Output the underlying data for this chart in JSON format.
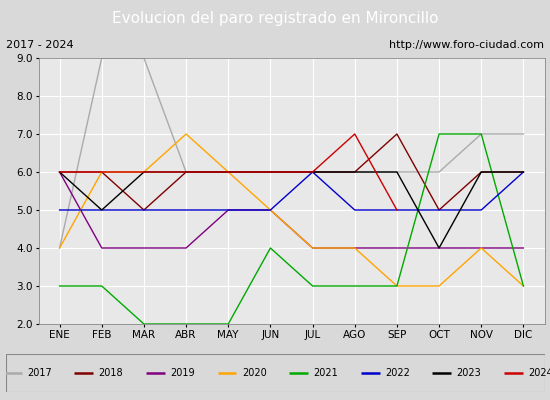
{
  "title": "Evolucion del paro registrado en Mironcillo",
  "subtitle_left": "2017 - 2024",
  "subtitle_right": "http://www.foro-ciudad.com",
  "months": [
    "ENE",
    "FEB",
    "MAR",
    "ABR",
    "MAY",
    "JUN",
    "JUL",
    "AGO",
    "SEP",
    "OCT",
    "NOV",
    "DIC"
  ],
  "ylim": [
    2.0,
    9.0
  ],
  "yticks": [
    2.0,
    3.0,
    4.0,
    5.0,
    6.0,
    7.0,
    8.0,
    9.0
  ],
  "series": {
    "2017": {
      "color": "#aaaaaa",
      "values": [
        4,
        9,
        9,
        6,
        6,
        6,
        6,
        6,
        6,
        6,
        7,
        7
      ]
    },
    "2018": {
      "color": "#800000",
      "values": [
        6,
        6,
        5,
        6,
        6,
        6,
        6,
        6,
        7,
        5,
        6,
        6
      ]
    },
    "2019": {
      "color": "#800080",
      "values": [
        6,
        4,
        4,
        4,
        5,
        5,
        4,
        4,
        4,
        4,
        4,
        4
      ]
    },
    "2020": {
      "color": "#ffa500",
      "values": [
        4,
        6,
        6,
        7,
        6,
        5,
        4,
        4,
        3,
        3,
        4,
        3
      ]
    },
    "2021": {
      "color": "#00aa00",
      "values": [
        3,
        3,
        2,
        2,
        2,
        4,
        3,
        3,
        3,
        7,
        7,
        3
      ]
    },
    "2022": {
      "color": "#0000cc",
      "values": [
        5,
        5,
        5,
        5,
        5,
        5,
        6,
        5,
        5,
        5,
        5,
        6
      ]
    },
    "2023": {
      "color": "#000000",
      "values": [
        6,
        5,
        6,
        6,
        6,
        6,
        6,
        6,
        6,
        4,
        6,
        6
      ]
    },
    "2024": {
      "color": "#cc0000",
      "values": [
        6,
        6,
        6,
        6,
        6,
        6,
        6,
        7,
        5,
        null,
        null,
        null
      ]
    }
  },
  "title_bg_color": "#4472c4",
  "title_color": "white",
  "subtitle_bg_color": "#d9d9d9",
  "plot_bg_color": "#e8e8e8",
  "legend_bg_color": "#d9d9d9",
  "grid_color": "white",
  "legend_years": [
    "2017",
    "2018",
    "2019",
    "2020",
    "2021",
    "2022",
    "2023",
    "2024"
  ]
}
